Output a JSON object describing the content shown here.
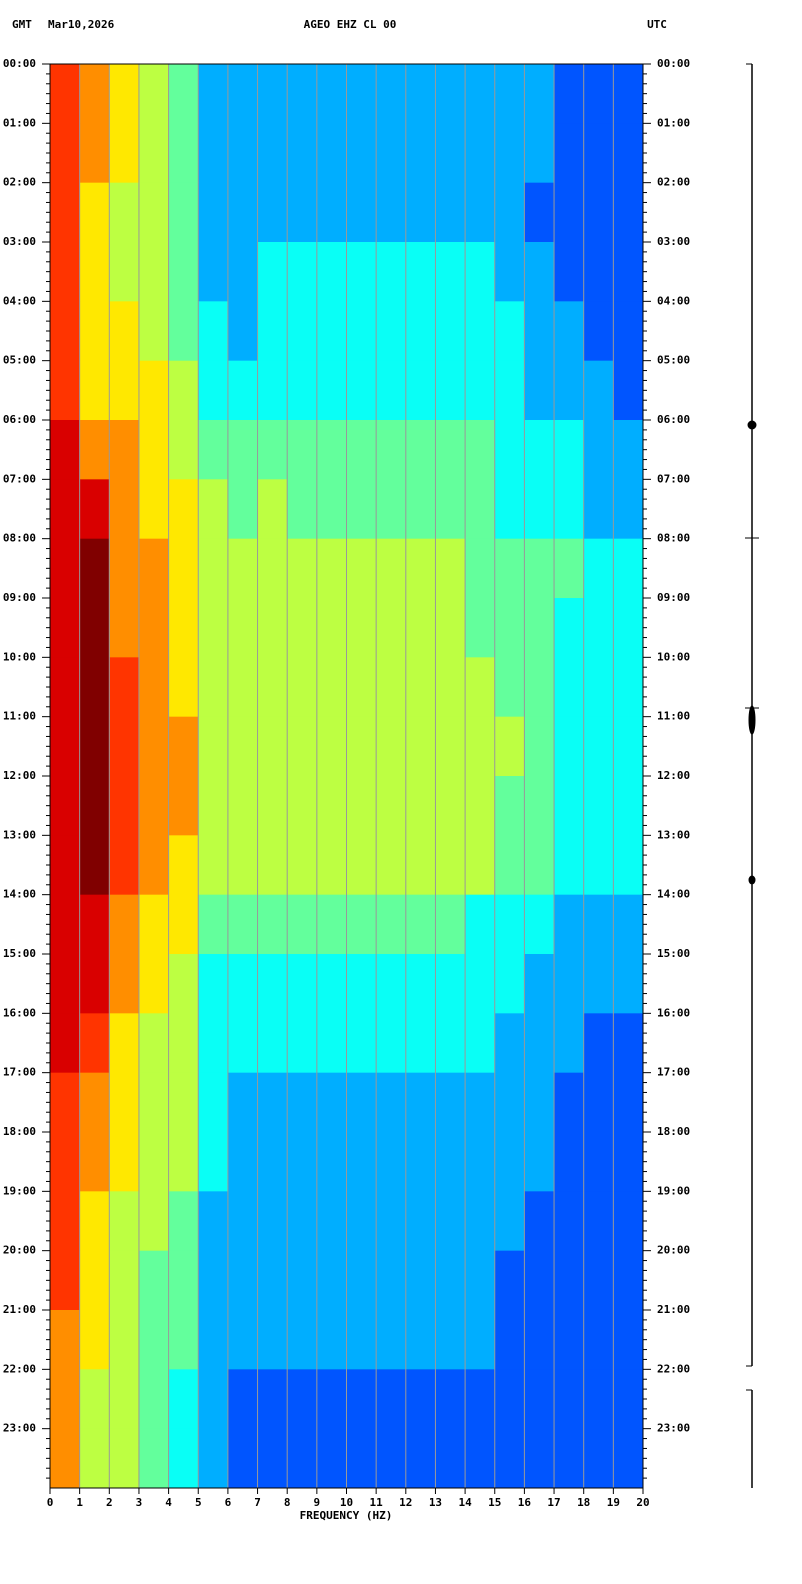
{
  "chart_data": {
    "type": "heatmap",
    "header_left": [
      "GMT",
      "Mar10,2026"
    ],
    "title": "AGEO EHZ CL 00",
    "timezone": "UTC",
    "x_label": "FREQUENCY (HZ)",
    "xlim": [
      0,
      20
    ],
    "xticks": [
      0,
      1,
      2,
      3,
      4,
      5,
      6,
      7,
      8,
      9,
      10,
      11,
      12,
      13,
      14,
      15,
      16,
      17,
      18,
      19,
      20
    ],
    "grid": true,
    "colormap": "jet",
    "zlim": [
      0,
      10
    ],
    "categories": [
      "00:00",
      "01:00",
      "02:00",
      "03:00",
      "04:00",
      "05:00",
      "06:00",
      "07:00",
      "08:00",
      "09:00",
      "10:00",
      "11:00",
      "12:00",
      "13:00",
      "14:00",
      "15:00",
      "16:00",
      "17:00",
      "18:00",
      "19:00",
      "20:00",
      "21:00",
      "22:00",
      "23:00"
    ],
    "values": [
      [
        8,
        7,
        6,
        5,
        4,
        2,
        2,
        2,
        2,
        2,
        2,
        2,
        2,
        2,
        2,
        2,
        2,
        1,
        1,
        1
      ],
      [
        8,
        7,
        6,
        5,
        4,
        2,
        2,
        2,
        2,
        2,
        2,
        2,
        2,
        2,
        2,
        2,
        2,
        1,
        1,
        1
      ],
      [
        8,
        6,
        5,
        5,
        4,
        2,
        2,
        2,
        2,
        2,
        2,
        2,
        2,
        2,
        2,
        2,
        1,
        1,
        1,
        1
      ],
      [
        8,
        6,
        5,
        5,
        4,
        2,
        2,
        3,
        3,
        3,
        3,
        3,
        3,
        3,
        3,
        2,
        2,
        1,
        1,
        1
      ],
      [
        8,
        6,
        6,
        5,
        4,
        3,
        2,
        3,
        3,
        3,
        3,
        3,
        3,
        3,
        3,
        3,
        2,
        2,
        1,
        1
      ],
      [
        8,
        6,
        6,
        6,
        5,
        3,
        3,
        3,
        3,
        3,
        3,
        3,
        3,
        3,
        3,
        3,
        2,
        2,
        2,
        1
      ],
      [
        9,
        7,
        7,
        6,
        5,
        4,
        4,
        4,
        4,
        4,
        4,
        4,
        4,
        4,
        4,
        3,
        3,
        3,
        2,
        2
      ],
      [
        9,
        9,
        7,
        6,
        6,
        5,
        4,
        5,
        4,
        4,
        4,
        4,
        4,
        4,
        4,
        3,
        3,
        3,
        2,
        2
      ],
      [
        9,
        10,
        7,
        7,
        6,
        5,
        5,
        5,
        5,
        5,
        5,
        5,
        5,
        5,
        4,
        4,
        4,
        4,
        3,
        3
      ],
      [
        9,
        10,
        7,
        7,
        6,
        5,
        5,
        5,
        5,
        5,
        5,
        5,
        5,
        5,
        4,
        4,
        4,
        3,
        3,
        3
      ],
      [
        9,
        10,
        8,
        7,
        6,
        5,
        5,
        5,
        5,
        5,
        5,
        5,
        5,
        5,
        5,
        4,
        4,
        3,
        3,
        3
      ],
      [
        9,
        10,
        8,
        7,
        7,
        5,
        5,
        5,
        5,
        5,
        5,
        5,
        5,
        5,
        5,
        5,
        4,
        3,
        3,
        3
      ],
      [
        9,
        10,
        8,
        7,
        7,
        5,
        5,
        5,
        5,
        5,
        5,
        5,
        5,
        5,
        5,
        4,
        4,
        3,
        3,
        3
      ],
      [
        9,
        10,
        8,
        7,
        6,
        5,
        5,
        5,
        5,
        5,
        5,
        5,
        5,
        5,
        5,
        4,
        4,
        3,
        3,
        3
      ],
      [
        9,
        9,
        7,
        6,
        6,
        4,
        4,
        4,
        4,
        4,
        4,
        4,
        4,
        4,
        3,
        3,
        3,
        2,
        2,
        2
      ],
      [
        9,
        9,
        7,
        6,
        5,
        3,
        3,
        3,
        3,
        3,
        3,
        3,
        3,
        3,
        3,
        3,
        2,
        2,
        2,
        2
      ],
      [
        9,
        8,
        6,
        5,
        5,
        3,
        3,
        3,
        3,
        3,
        3,
        3,
        3,
        3,
        3,
        2,
        2,
        2,
        1,
        1
      ],
      [
        8,
        7,
        6,
        5,
        5,
        3,
        2,
        2,
        2,
        2,
        2,
        2,
        2,
        2,
        2,
        2,
        2,
        1,
        1,
        1
      ],
      [
        8,
        7,
        6,
        5,
        5,
        3,
        2,
        2,
        2,
        2,
        2,
        2,
        2,
        2,
        2,
        2,
        2,
        1,
        1,
        1
      ],
      [
        8,
        6,
        5,
        5,
        4,
        2,
        2,
        2,
        2,
        2,
        2,
        2,
        2,
        2,
        2,
        2,
        1,
        1,
        1,
        1
      ],
      [
        8,
        6,
        5,
        4,
        4,
        2,
        2,
        2,
        2,
        2,
        2,
        2,
        2,
        2,
        2,
        1,
        1,
        1,
        1,
        1
      ],
      [
        7,
        6,
        5,
        4,
        4,
        2,
        2,
        2,
        2,
        2,
        2,
        2,
        2,
        2,
        2,
        1,
        1,
        1,
        1,
        1
      ],
      [
        7,
        5,
        5,
        4,
        3,
        2,
        1,
        1,
        1,
        1,
        1,
        1,
        1,
        1,
        1,
        1,
        1,
        1,
        1,
        1
      ],
      [
        7,
        5,
        5,
        4,
        3,
        2,
        1,
        1,
        1,
        1,
        1,
        1,
        1,
        1,
        1,
        1,
        1,
        1,
        1,
        1
      ]
    ]
  }
}
